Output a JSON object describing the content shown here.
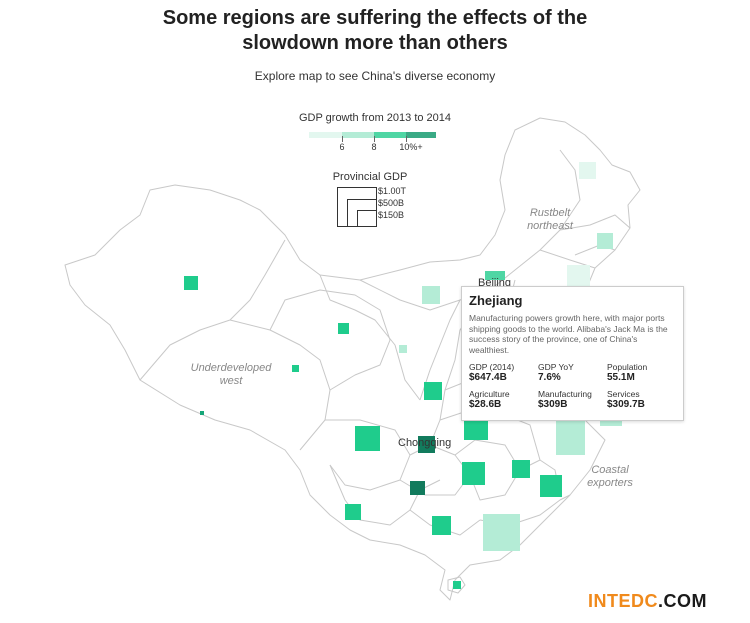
{
  "header": {
    "title_line1": "Some regions are suffering the effects of the",
    "title_line2": "slowdown more than others",
    "subtitle": "Explore map to see China's diverse economy"
  },
  "legend": {
    "title": "GDP growth from 2013 to 2014",
    "scale_colors": [
      "#e3f7ef",
      "#b4ecd6",
      "#4fd6a4",
      "#3aaa85"
    ],
    "ticks": [
      "6",
      "8",
      "10%+"
    ]
  },
  "gdp_legend": {
    "title": "Provincial GDP",
    "sizes": [
      "$1.00T",
      "$500B",
      "$150B"
    ]
  },
  "colors": {
    "growth_very_low": "#e3f7ef",
    "growth_low": "#b4ecd6",
    "growth_mid": "#1fcc8c",
    "growth_high": "#16a678",
    "growth_very_high": "#127b5d",
    "border": "#c8c8c8"
  },
  "map": {
    "region_labels": {
      "rustbelt": [
        "Rustbelt",
        "northeast"
      ],
      "west": [
        "Underdeveloped",
        "west"
      ],
      "coastal": [
        "Coastal",
        "exporters"
      ]
    },
    "city_labels": {
      "beijing": "Beijing",
      "chongqing": "Chongqing"
    }
  },
  "tooltip": {
    "province": "Zhejiang",
    "description": "Manufacturing powers growth here, with major ports shipping goods to the world. Alibaba's Jack Ma is the success story of the province, one of China's wealthiest.",
    "stats": [
      {
        "label": "GDP (2014)",
        "value": "$647.4B"
      },
      {
        "label": "GDP YoY",
        "value": "7.6%"
      },
      {
        "label": "Population",
        "value": "55.1M"
      },
      {
        "label": "Agriculture",
        "value": "$28.6B"
      },
      {
        "label": "Manufacturing",
        "value": "$309B"
      },
      {
        "label": "Services",
        "value": "$309.7B"
      }
    ]
  },
  "watermark": {
    "part1": "INTEDC",
    "part2": ".COM"
  }
}
